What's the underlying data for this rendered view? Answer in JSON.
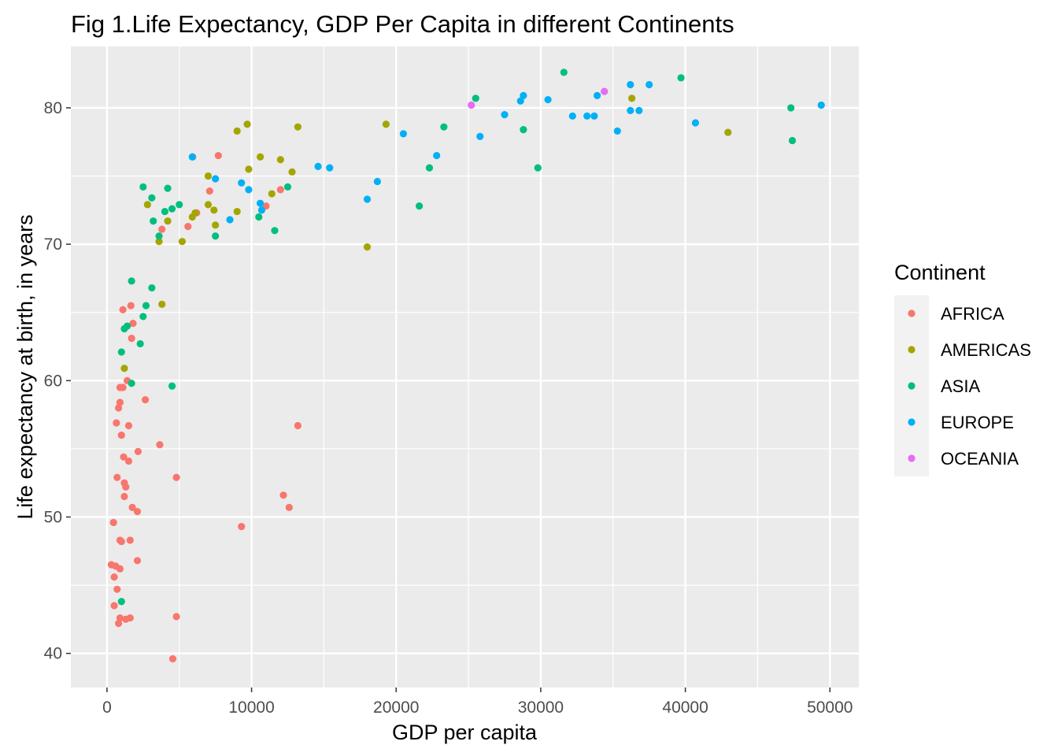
{
  "chart_data": {
    "type": "scatter",
    "title": "Fig 1.Life Expectancy, GDP Per Capita in different Continents",
    "xlabel": "GDP per capita",
    "ylabel": "Life expectancy at birth, in years",
    "xlim": [
      -2500,
      52000
    ],
    "ylim": [
      37.5,
      84.5
    ],
    "x_ticks": [
      0,
      10000,
      20000,
      30000,
      40000,
      50000
    ],
    "x_tick_labels": [
      "0",
      "10000",
      "20000",
      "30000",
      "40000",
      "50000"
    ],
    "y_ticks": [
      40,
      50,
      60,
      70,
      80
    ],
    "y_tick_labels": [
      "40",
      "50",
      "60",
      "70",
      "80"
    ],
    "grid": true,
    "background": "#ebebeb",
    "legend": {
      "title": "Continent",
      "position": "right"
    },
    "series": [
      {
        "name": "AFRICA",
        "color": "#f8766d",
        "points": [
          [
            5930,
            76.4
          ],
          [
            7700,
            76.5
          ],
          [
            7100,
            73.9
          ],
          [
            6200,
            72.3
          ],
          [
            5600,
            71.3
          ],
          [
            3800,
            71.1
          ],
          [
            12000,
            74.0
          ],
          [
            11000,
            72.8
          ],
          [
            1100,
            65.2
          ],
          [
            1650,
            65.5
          ],
          [
            1800,
            64.2
          ],
          [
            1700,
            63.1
          ],
          [
            1400,
            60.0
          ],
          [
            900,
            59.5
          ],
          [
            1100,
            59.5
          ],
          [
            2650,
            58.6
          ],
          [
            650,
            56.9
          ],
          [
            800,
            58.0
          ],
          [
            900,
            58.4
          ],
          [
            1500,
            56.7
          ],
          [
            1000,
            56.0
          ],
          [
            3650,
            55.3
          ],
          [
            2150,
            54.8
          ],
          [
            1150,
            54.4
          ],
          [
            1500,
            54.1
          ],
          [
            700,
            52.9
          ],
          [
            1200,
            52.5
          ],
          [
            1300,
            52.2
          ],
          [
            4800,
            52.9
          ],
          [
            1200,
            51.5
          ],
          [
            1750,
            50.7
          ],
          [
            2100,
            50.4
          ],
          [
            450,
            49.6
          ],
          [
            900,
            48.3
          ],
          [
            1000,
            48.2
          ],
          [
            1600,
            48.3
          ],
          [
            2100,
            46.8
          ],
          [
            300,
            46.5
          ],
          [
            600,
            46.4
          ],
          [
            900,
            46.2
          ],
          [
            500,
            45.6
          ],
          [
            700,
            44.7
          ],
          [
            500,
            43.5
          ],
          [
            900,
            42.6
          ],
          [
            800,
            42.2
          ],
          [
            1300,
            42.5
          ],
          [
            1600,
            42.6
          ],
          [
            4800,
            42.7
          ],
          [
            4550,
            39.6
          ],
          [
            9300,
            49.3
          ],
          [
            13200,
            56.7
          ],
          [
            12200,
            51.6
          ],
          [
            12600,
            50.7
          ]
        ]
      },
      {
        "name": "AMERICAS",
        "color": "#a3a500",
        "points": [
          [
            1200,
            60.9
          ],
          [
            3800,
            65.6
          ],
          [
            2800,
            72.9
          ],
          [
            3600,
            70.2
          ],
          [
            4200,
            71.7
          ],
          [
            5200,
            70.2
          ],
          [
            5900,
            72.0
          ],
          [
            6100,
            72.3
          ],
          [
            7000,
            75.0
          ],
          [
            7000,
            72.9
          ],
          [
            7400,
            72.5
          ],
          [
            7500,
            71.4
          ],
          [
            9000,
            72.4
          ],
          [
            9000,
            78.3
          ],
          [
            9700,
            78.8
          ],
          [
            9800,
            75.5
          ],
          [
            10600,
            76.4
          ],
          [
            11400,
            73.7
          ],
          [
            12000,
            76.2
          ],
          [
            12800,
            75.3
          ],
          [
            13200,
            78.6
          ],
          [
            18000,
            69.8
          ],
          [
            19300,
            78.8
          ],
          [
            36300,
            80.7
          ],
          [
            42950,
            78.2
          ]
        ]
      },
      {
        "name": "ASIA",
        "color": "#00bf7d",
        "points": [
          [
            1000,
            43.8
          ],
          [
            1000,
            62.1
          ],
          [
            1200,
            63.8
          ],
          [
            1400,
            64.0
          ],
          [
            1700,
            67.3
          ],
          [
            1700,
            59.8
          ],
          [
            2300,
            62.7
          ],
          [
            2500,
            64.7
          ],
          [
            2700,
            65.5
          ],
          [
            3100,
            66.8
          ],
          [
            2500,
            74.2
          ],
          [
            3100,
            73.4
          ],
          [
            3200,
            71.7
          ],
          [
            3600,
            70.6
          ],
          [
            4000,
            72.4
          ],
          [
            4200,
            74.1
          ],
          [
            4500,
            72.6
          ],
          [
            4500,
            59.6
          ],
          [
            5000,
            72.9
          ],
          [
            7500,
            70.6
          ],
          [
            10500,
            72.0
          ],
          [
            11600,
            71.0
          ],
          [
            12500,
            74.2
          ],
          [
            21600,
            72.8
          ],
          [
            22300,
            75.6
          ],
          [
            23300,
            78.6
          ],
          [
            25500,
            80.7
          ],
          [
            28800,
            78.4
          ],
          [
            29800,
            75.6
          ],
          [
            31600,
            82.6
          ],
          [
            39700,
            82.2
          ],
          [
            47300,
            80.0
          ],
          [
            47400,
            77.6
          ]
        ]
      },
      {
        "name": "EUROPE",
        "color": "#00b0f6",
        "points": [
          [
            5900,
            76.4
          ],
          [
            7500,
            74.8
          ],
          [
            8500,
            71.8
          ],
          [
            9300,
            74.5
          ],
          [
            9800,
            74.0
          ],
          [
            10700,
            72.5
          ],
          [
            10600,
            73.0
          ],
          [
            14600,
            75.7
          ],
          [
            15400,
            75.6
          ],
          [
            18000,
            73.3
          ],
          [
            18700,
            74.6
          ],
          [
            20500,
            78.1
          ],
          [
            22800,
            76.5
          ],
          [
            25800,
            77.9
          ],
          [
            27500,
            79.5
          ],
          [
            28600,
            80.5
          ],
          [
            28800,
            80.9
          ],
          [
            30500,
            80.6
          ],
          [
            32200,
            79.4
          ],
          [
            33200,
            79.4
          ],
          [
            33700,
            79.4
          ],
          [
            33900,
            80.9
          ],
          [
            35300,
            78.3
          ],
          [
            36200,
            81.7
          ],
          [
            36200,
            79.8
          ],
          [
            36800,
            79.8
          ],
          [
            37500,
            81.7
          ],
          [
            40700,
            78.9
          ],
          [
            49400,
            80.2
          ]
        ]
      },
      {
        "name": "OCEANIA",
        "color": "#e76bf3",
        "points": [
          [
            25200,
            80.2
          ],
          [
            34400,
            81.2
          ]
        ]
      }
    ]
  }
}
